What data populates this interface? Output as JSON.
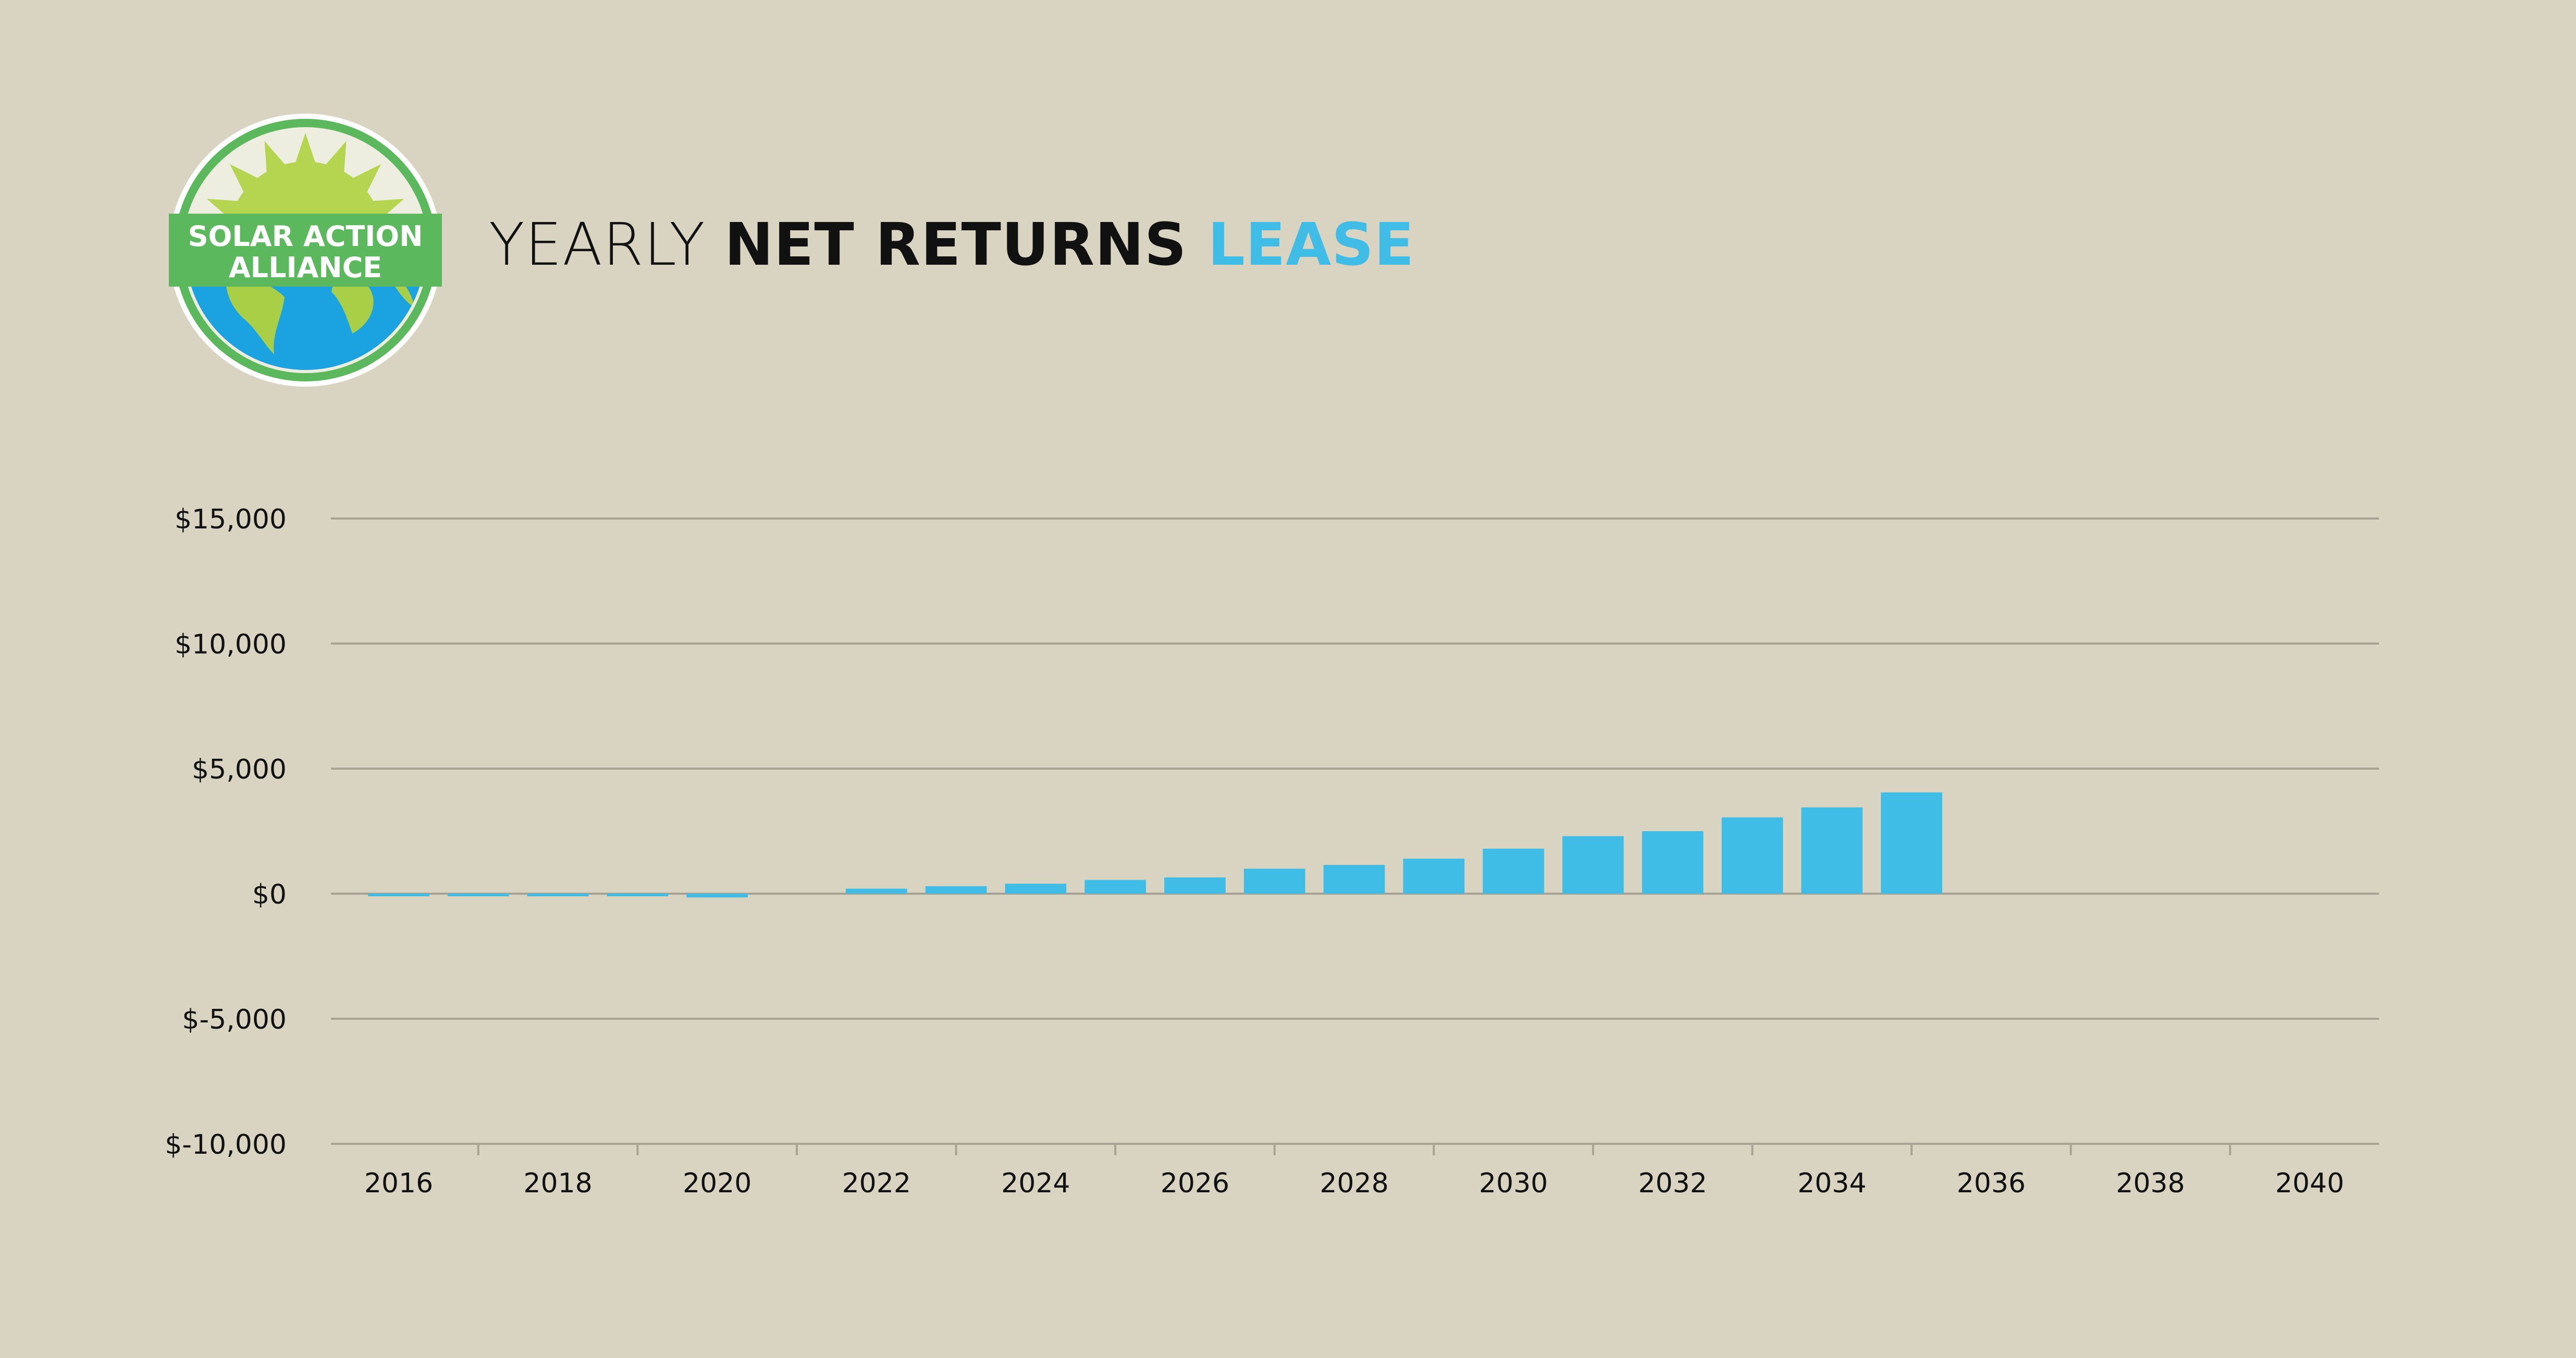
{
  "logo": {
    "text_line1": "SOLAR ACTION",
    "text_line2": "ALLIANCE",
    "ring_color": "#5cb85c",
    "sun_color": "#b5d44f",
    "ocean_color": "#1aa3e0",
    "land_color": "#a8cf45"
  },
  "header": {
    "title_part1": "YEARLY ",
    "title_part2": "NET RETURNS ",
    "title_part3": "LEASE",
    "accent_color": "#3fbde6"
  },
  "chart_data": {
    "type": "bar",
    "title": "YEARLY NET RETURNS LEASE",
    "xlabel": "",
    "ylabel": "",
    "x": [
      2016,
      2017,
      2018,
      2019,
      2020,
      2021,
      2022,
      2023,
      2024,
      2025,
      2026,
      2027,
      2028,
      2029,
      2030,
      2031,
      2032,
      2033,
      2034,
      2035,
      2036,
      2037,
      2038,
      2039,
      2040
    ],
    "values": [
      -50,
      -100,
      -100,
      -100,
      -150,
      0,
      200,
      300,
      400,
      550,
      650,
      1000,
      1150,
      1400,
      1800,
      2300,
      2500,
      3050,
      3450,
      4050,
      0,
      0,
      0,
      0,
      0
    ],
    "ylim": [
      -10000,
      15000
    ],
    "yticks": [
      15000,
      10000,
      5000,
      0,
      -5000,
      -10000
    ],
    "ytick_labels": [
      "$15,000",
      "$10,000",
      "$5,000",
      "$0",
      "$-5,000",
      "$-10,000"
    ],
    "xtick_labels": [
      "2016",
      "2018",
      "2020",
      "2022",
      "2024",
      "2026",
      "2028",
      "2030",
      "2032",
      "2034",
      "2036",
      "2038",
      "2040"
    ],
    "bar_color": "#3fbde6",
    "grid": true,
    "legend": "none"
  }
}
